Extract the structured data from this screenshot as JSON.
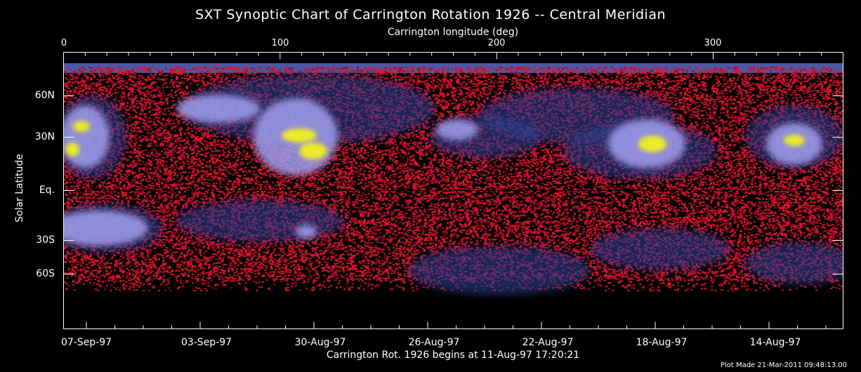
{
  "chart_data": {
    "type": "heatmap",
    "title": "SXT Synoptic Chart of Carrington Rotation 1926 -- Central Meridian",
    "xlabel_top": "Carrington longitude (deg)",
    "x_top_ticks": [
      "0",
      "100",
      "200",
      "300"
    ],
    "x_top_range": [
      0,
      360
    ],
    "ylabel": "Solar Latitude",
    "y_ticks": [
      "60N",
      "30N",
      "Eq.",
      "30S",
      "60S"
    ],
    "x_bottom_ticks": [
      "07-Sep-97",
      "03-Sep-97",
      "30-Aug-97",
      "26-Aug-97",
      "22-Aug-97",
      "18-Aug-97",
      "14-Aug-97"
    ],
    "xlabel_bottom": "Carrington Rot. 1926 begins at 11-Aug-97 17:20:21",
    "colors": {
      "background": "#000000",
      "low": "#e0102a",
      "mid": "#2a3f8f",
      "high": "#a0a0f0",
      "peak": "#f0f020"
    }
  },
  "footer": {
    "plot_made": "Plot Made 21-Mar-2011 09:48:13.00"
  }
}
